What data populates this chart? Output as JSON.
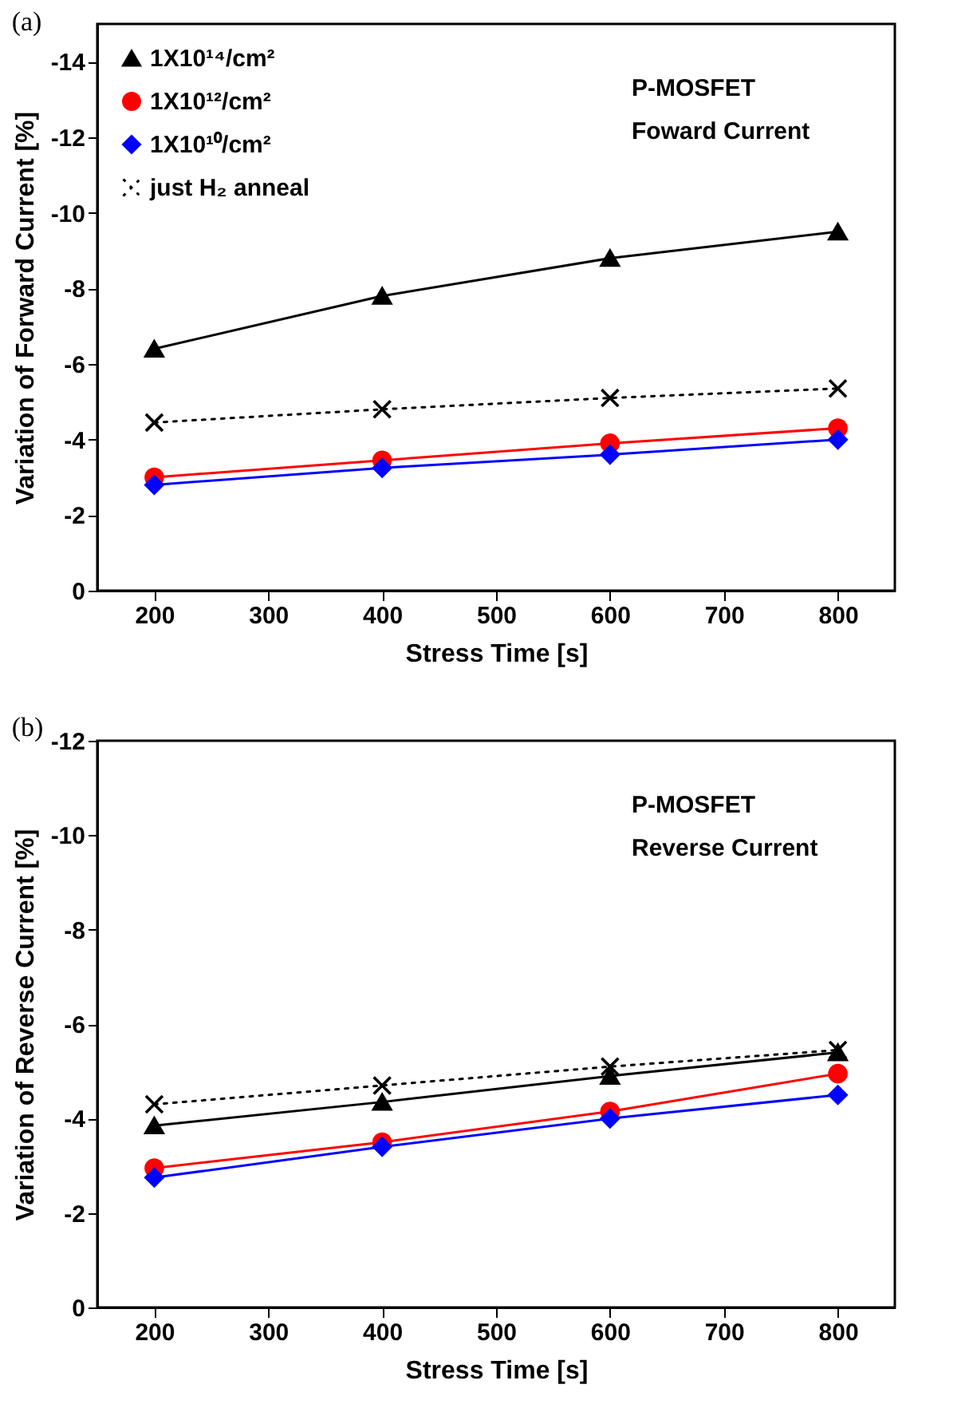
{
  "chart_data": [
    {
      "type": "line",
      "title": "(a)",
      "xlabel": "Stress Time [s]",
      "ylabel": "Variation of Forward Current [%]",
      "annotations": [
        "P-MOSFET",
        "Foward Current"
      ],
      "x": [
        200,
        400,
        600,
        800
      ],
      "xlim": [
        150,
        850
      ],
      "xticks": [
        200,
        300,
        400,
        500,
        600,
        700,
        800
      ],
      "ylim": [
        0,
        -15
      ],
      "yticks": [
        0,
        -2,
        -4,
        -6,
        -8,
        -10,
        -12,
        -14
      ],
      "grid": false,
      "legend": "top left",
      "series": [
        {
          "name": "1X10¹⁴/cm²",
          "color": "#000000",
          "marker": "triangle",
          "line_style": "solid",
          "values": [
            -6.4,
            -7.8,
            -8.8,
            -9.5
          ]
        },
        {
          "name": "1X10¹²/cm²",
          "color": "#ff0000",
          "marker": "circle",
          "line_style": "solid",
          "values": [
            -3.0,
            -3.45,
            -3.9,
            -4.3
          ]
        },
        {
          "name": "1X10¹⁰/cm²",
          "color": "#0000ff",
          "marker": "diamond",
          "line_style": "solid",
          "values": [
            -2.8,
            -3.25,
            -3.6,
            -4.0
          ]
        },
        {
          "name": "just H₂ anneal",
          "color": "#000000",
          "marker": "cross",
          "line_style": "dotted",
          "values": [
            -4.45,
            -4.8,
            -5.1,
            -5.35
          ]
        }
      ]
    },
    {
      "type": "line",
      "title": "(b)",
      "xlabel": "Stress Time [s]",
      "ylabel": "Variation of Reverse Current [%]",
      "annotations": [
        "P-MOSFET",
        "Reverse Current"
      ],
      "x": [
        200,
        400,
        600,
        800
      ],
      "xlim": [
        150,
        850
      ],
      "xticks": [
        200,
        300,
        400,
        500,
        600,
        700,
        800
      ],
      "ylim": [
        0,
        -12
      ],
      "yticks": [
        0,
        -2,
        -4,
        -6,
        -8,
        -10,
        -12
      ],
      "grid": false,
      "legend": "top left",
      "series": [
        {
          "name": "1X10¹⁴/cm²",
          "color": "#000000",
          "marker": "triangle",
          "line_style": "solid",
          "values": [
            -3.85,
            -4.35,
            -4.9,
            -5.4
          ]
        },
        {
          "name": "1X10¹²/cm²",
          "color": "#ff0000",
          "marker": "circle",
          "line_style": "solid",
          "values": [
            -2.95,
            -3.5,
            -4.15,
            -4.95
          ]
        },
        {
          "name": "1X10¹⁰/cm²",
          "color": "#0000ff",
          "marker": "diamond",
          "line_style": "solid",
          "values": [
            -2.75,
            -3.4,
            -4.0,
            -4.5
          ]
        },
        {
          "name": "just H₂ anneal",
          "color": "#000000",
          "marker": "cross",
          "line_style": "dotted",
          "values": [
            -4.3,
            -4.7,
            -5.1,
            -5.45
          ]
        }
      ]
    }
  ]
}
